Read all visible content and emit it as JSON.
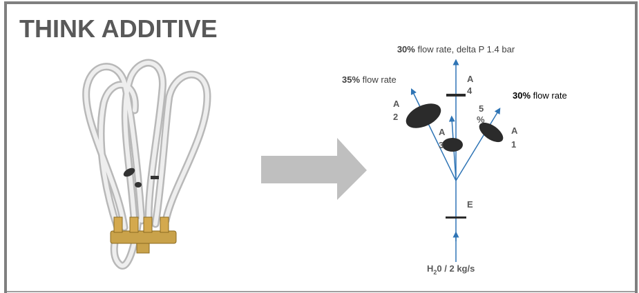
{
  "header": {
    "title": "THINK ADDITIVE"
  },
  "diagram": {
    "top_label": {
      "bold": "30%",
      "text": " flow rate, delta P 1.4 bar"
    },
    "left_label": {
      "bold": "35%",
      "text": " flow rate"
    },
    "right_label": {
      "bold": "30%",
      "text": " flow rate"
    },
    "nodes": [
      {
        "lines": [
          "A",
          "4"
        ]
      },
      {
        "lines": [
          "A",
          "2"
        ]
      },
      {
        "lines": [
          "5",
          "%"
        ]
      },
      {
        "lines": [
          "A",
          "3"
        ]
      },
      {
        "lines": [
          "A",
          "1"
        ]
      },
      {
        "lines": [
          "E"
        ]
      }
    ],
    "inlet_label": {
      "base": "H",
      "sub": "2",
      "text": "0 / 2 kg/s"
    }
  }
}
